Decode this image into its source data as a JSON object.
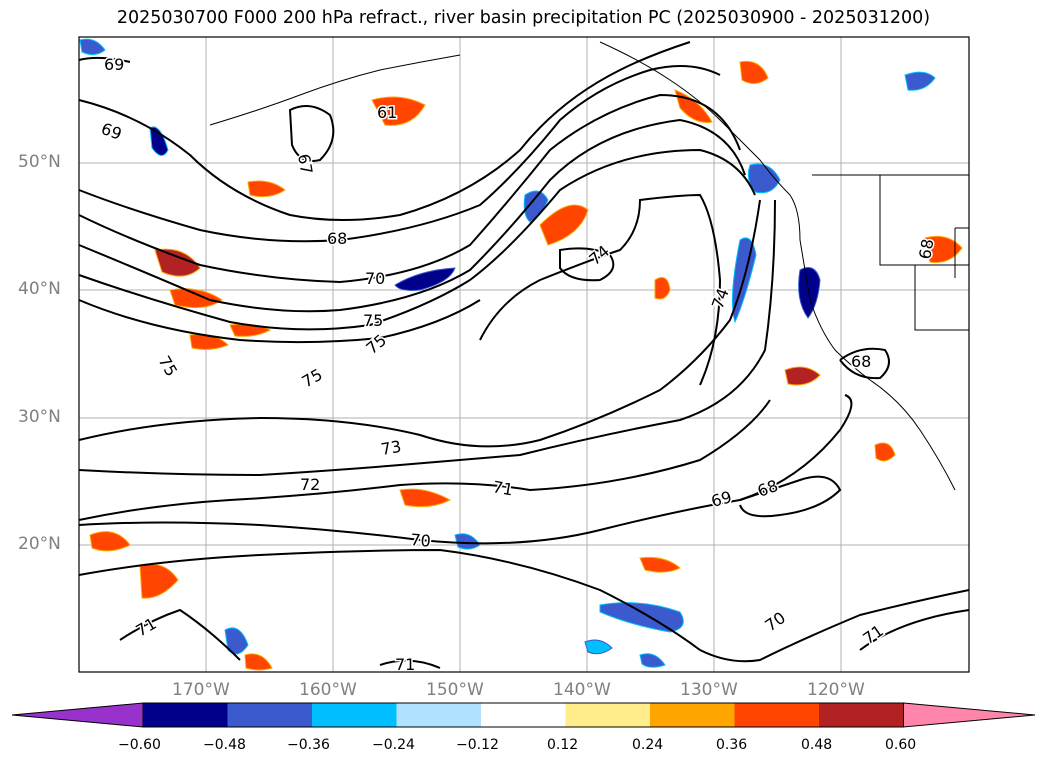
{
  "title": "2025030700 F000 200 hPa refract., river basin precipitation PC (2025030900 - 2025031200)",
  "map": {
    "lat_labels": [
      "50°N",
      "40°N",
      "30°N",
      "20°N"
    ],
    "lon_labels": [
      "170°W",
      "160°W",
      "150°W",
      "140°W",
      "130°W",
      "120°W"
    ],
    "gridline_color": "#b0b0b0",
    "contour_labels": [
      "69",
      "69",
      "67",
      "61",
      "68",
      "70",
      "75",
      "75",
      "75",
      "75",
      "74",
      "74",
      "68",
      "73",
      "72",
      "71",
      "69",
      "68",
      "70",
      "71",
      "70",
      "71",
      "71",
      "68"
    ]
  },
  "colorbar": {
    "ticks": [
      "−0.60",
      "−0.48",
      "−0.36",
      "−0.24",
      "−0.12",
      "0.12",
      "0.24",
      "0.36",
      "0.48",
      "0.60"
    ],
    "colors": [
      "#9932cc",
      "#00008b",
      "#3a5acd",
      "#00bfff",
      "#b0e2ff",
      "#ffffff",
      "#ffec8b",
      "#ffa500",
      "#ff4500",
      "#b22222",
      "#ff86aa"
    ]
  }
}
